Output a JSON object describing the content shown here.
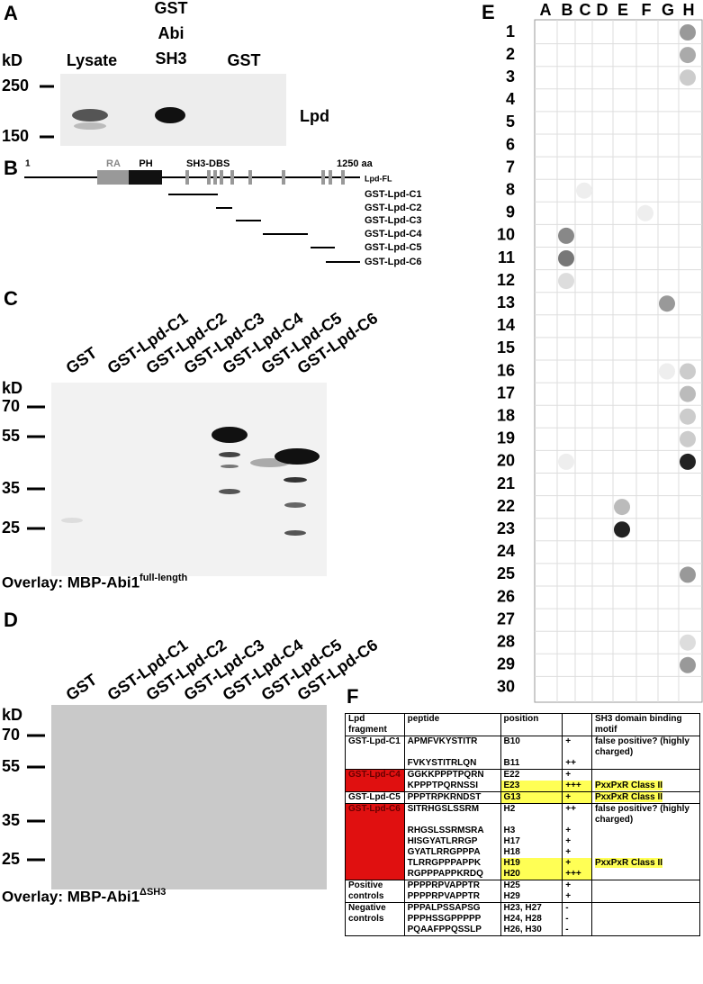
{
  "panel_a": {
    "label": "A",
    "kd": "kD",
    "lanes": [
      "Lysate",
      [
        "GST",
        "Abi",
        "SH3"
      ],
      "GST"
    ],
    "markers": [
      "250",
      "150"
    ],
    "protein": "Lpd"
  },
  "panel_b": {
    "label": "B",
    "start": "1",
    "end": "1250 aa",
    "domains": [
      "RA",
      "PH",
      "SH3-DBS"
    ],
    "full_length": "Lpd-FL",
    "constructs": [
      "GST-Lpd-C1",
      "GST-Lpd-C2",
      "GST-Lpd-C3",
      "GST-Lpd-C4",
      "GST-Lpd-C5",
      "GST-Lpd-C6"
    ]
  },
  "panel_c": {
    "label": "C",
    "kd": "kD",
    "lanes": [
      "GST",
      "GST-Lpd-C1",
      "GST-Lpd-C2",
      "GST-Lpd-C3",
      "GST-Lpd-C4",
      "GST-Lpd-C5",
      "GST-Lpd-C6"
    ],
    "markers": [
      "70",
      "55",
      "35",
      "25"
    ],
    "caption": "Overlay: MBP-Abi1",
    "caption_sup": "full-length"
  },
  "panel_d": {
    "label": "D",
    "kd": "kD",
    "lanes": [
      "GST",
      "GST-Lpd-C1",
      "GST-Lpd-C2",
      "GST-Lpd-C3",
      "GST-Lpd-C4",
      "GST-Lpd-C5",
      "GST-Lpd-C6"
    ],
    "markers": [
      "70",
      "55",
      "35",
      "25"
    ],
    "caption": "Overlay: MBP-Abi1",
    "caption_sup": "ΔSH3"
  },
  "panel_e": {
    "label": "E",
    "columns": [
      "A",
      "B",
      "C",
      "D",
      "E",
      "F",
      "G",
      "H"
    ],
    "rows": [
      "1",
      "2",
      "3",
      "4",
      "5",
      "6",
      "7",
      "8",
      "9",
      "10",
      "11",
      "12",
      "13",
      "14",
      "15",
      "16",
      "17",
      "18",
      "19",
      "20",
      "21",
      "22",
      "23",
      "24",
      "25",
      "26",
      "27",
      "28",
      "29",
      "30"
    ]
  },
  "panel_f": {
    "label": "F",
    "header": [
      "Lpd fragment",
      "peptide",
      "position",
      "SH3 domain binding motif"
    ],
    "groups": [
      {
        "fragment": "GST-Lpd-C1",
        "rows": [
          {
            "peptide": "APMFVKYSTITR",
            "position": "B10",
            "score": "+",
            "motif": "false positive? (highly charged)"
          },
          {
            "peptide": "FVKYSTITRLQN",
            "position": "B11",
            "score": "++"
          }
        ]
      },
      {
        "fragment": "GST-Lpd-C4",
        "color": "#e01010",
        "rows": [
          {
            "peptide": "GGKKPPPTPQRN",
            "position": "E22",
            "score": "+"
          },
          {
            "peptide": "KPPPTPQRNSSI",
            "position": "E23",
            "score": "+++",
            "motif": "PxxPxR Class II",
            "highlight": true
          }
        ]
      },
      {
        "fragment": "GST-Lpd-C5",
        "rows": [
          {
            "peptide": "PPPTRPKRNDST",
            "position": "G13",
            "score": "+",
            "motif": "PxxPxR Class II",
            "highlight": true
          }
        ]
      },
      {
        "fragment": "GST-Lpd-C6",
        "color": "#e01010",
        "rows": [
          {
            "peptide": "SITRHGSLSSRM",
            "position": "H2",
            "score": "++",
            "motif": "false positive? (highly charged)"
          },
          {
            "peptide": "RHGSLSSRMSRA",
            "position": "H3",
            "score": "+"
          },
          {
            "peptide": "HISGYATLRRGP",
            "position": "H17",
            "score": "+"
          },
          {
            "peptide": "GYATLRRGPPPA",
            "position": "H18",
            "score": "+"
          },
          {
            "peptide": "TLRRGPPPAPPK",
            "position": "H19",
            "score": "+",
            "motif": "PxxPxR Class II",
            "highlight": true
          },
          {
            "peptide": "RGPPPAPPKRDQ",
            "position": "H20",
            "score": "+++",
            "highlight": true
          }
        ]
      },
      {
        "fragment": "Positive controls",
        "rows": [
          {
            "peptide": "PPPPRPVAPPTR",
            "position": "H25",
            "score": "+"
          },
          {
            "peptide": "PPPPRPVAPPTR",
            "position": "H29",
            "score": "+"
          }
        ]
      },
      {
        "fragment": "Negative controls",
        "rows": [
          {
            "peptide": "PPPALPSSAPSG",
            "position": "H23, H27",
            "score": "-"
          },
          {
            "peptide": "PPPHSSGPPPPP",
            "position": "H24, H28",
            "score": "-"
          },
          {
            "peptide": "PQAAFPPQSSLP",
            "position": "H26, H30",
            "score": "-"
          }
        ]
      }
    ]
  }
}
